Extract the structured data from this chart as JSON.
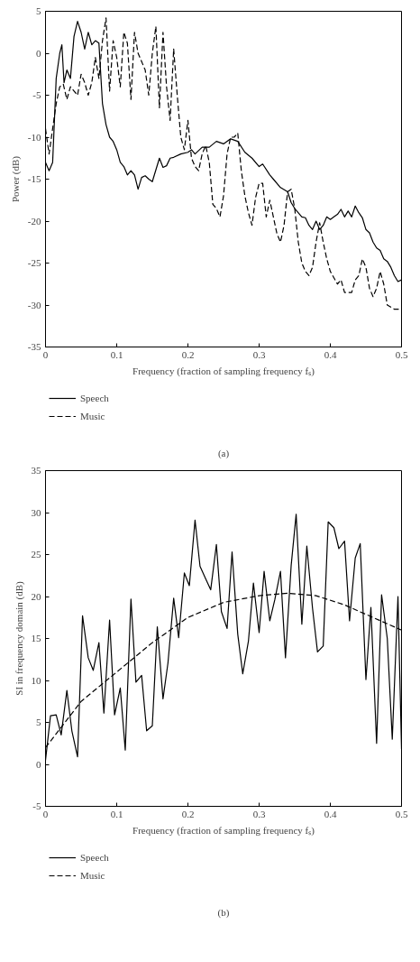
{
  "chart_data": [
    {
      "type": "line",
      "xlabel": "Frequency (fraction of sampling frequency fₛ)",
      "ylabel": "Power (dB)",
      "annotations": [
        "(a)"
      ],
      "xlim": [
        0,
        0.5
      ],
      "ylim": [
        -35,
        5
      ],
      "xticks": [
        0,
        0.1,
        0.2,
        0.3,
        0.4,
        0.5
      ],
      "yticks": [
        -35,
        -30,
        -25,
        -20,
        -15,
        -10,
        -5,
        0,
        5
      ],
      "legend": "bottom",
      "grid": false,
      "series": [
        {
          "name": "Speech",
          "color": "#000000",
          "line_style": "solid",
          "x": [
            0,
            0.005,
            0.01,
            0.015,
            0.02,
            0.023,
            0.026,
            0.03,
            0.035,
            0.04,
            0.045,
            0.05,
            0.055,
            0.06,
            0.065,
            0.07,
            0.075,
            0.08,
            0.085,
            0.09,
            0.095,
            0.1,
            0.105,
            0.11,
            0.115,
            0.12,
            0.125,
            0.13,
            0.135,
            0.14,
            0.145,
            0.15,
            0.16,
            0.165,
            0.17,
            0.175,
            0.18,
            0.19,
            0.2,
            0.205,
            0.21,
            0.22,
            0.23,
            0.24,
            0.25,
            0.26,
            0.27,
            0.28,
            0.29,
            0.3,
            0.305,
            0.315,
            0.32,
            0.33,
            0.34,
            0.345,
            0.35,
            0.36,
            0.365,
            0.37,
            0.375,
            0.38,
            0.385,
            0.39,
            0.395,
            0.4,
            0.405,
            0.41,
            0.415,
            0.42,
            0.425,
            0.43,
            0.435,
            0.44,
            0.445,
            0.45,
            0.455,
            0.46,
            0.465,
            0.47,
            0.475,
            0.48,
            0.485,
            0.49,
            0.495,
            0.5
          ],
          "values": [
            -13,
            -14,
            -13,
            -3,
            0,
            1,
            -3.5,
            -2,
            -3,
            2,
            3.8,
            2.5,
            0.5,
            2.5,
            1,
            1.5,
            1.2,
            -6,
            -8.5,
            -10,
            -10.5,
            -11.5,
            -13,
            -13.5,
            -14.5,
            -14,
            -14.5,
            -16.2,
            -14.8,
            -14.6,
            -15,
            -15.3,
            -12.5,
            -13.6,
            -13.4,
            -12.5,
            -12.4,
            -12,
            -11.8,
            -11.5,
            -12,
            -11.2,
            -11.2,
            -10.5,
            -10.8,
            -10.2,
            -10.5,
            -11.8,
            -12.5,
            -13.5,
            -13.2,
            -14.5,
            -15,
            -16,
            -16.5,
            -17.8,
            -18.5,
            -19.5,
            -19.6,
            -20.5,
            -21,
            -20,
            -21,
            -20.5,
            -19.5,
            -19.8,
            -19.5,
            -19.2,
            -18.6,
            -19.5,
            -18.8,
            -19.5,
            -18.2,
            -19,
            -19.6,
            -21,
            -21.4,
            -22.5,
            -23.2,
            -23.5,
            -24.5,
            -24.8,
            -25.5,
            -26.5,
            -27.2,
            -27
          ]
        },
        {
          "name": "Music",
          "color": "#000000",
          "line_style": "dashed",
          "x": [
            0,
            0.005,
            0.01,
            0.015,
            0.02,
            0.025,
            0.03,
            0.035,
            0.04,
            0.045,
            0.05,
            0.055,
            0.06,
            0.065,
            0.07,
            0.075,
            0.08,
            0.085,
            0.09,
            0.095,
            0.1,
            0.105,
            0.11,
            0.115,
            0.12,
            0.125,
            0.13,
            0.135,
            0.14,
            0.145,
            0.15,
            0.155,
            0.16,
            0.165,
            0.17,
            0.175,
            0.18,
            0.185,
            0.19,
            0.195,
            0.2,
            0.205,
            0.21,
            0.215,
            0.22,
            0.225,
            0.23,
            0.235,
            0.24,
            0.245,
            0.25,
            0.255,
            0.26,
            0.265,
            0.27,
            0.275,
            0.28,
            0.285,
            0.29,
            0.295,
            0.3,
            0.305,
            0.31,
            0.315,
            0.32,
            0.325,
            0.33,
            0.335,
            0.34,
            0.345,
            0.35,
            0.355,
            0.36,
            0.365,
            0.37,
            0.375,
            0.38,
            0.385,
            0.39,
            0.395,
            0.4,
            0.41,
            0.415,
            0.42,
            0.43,
            0.435,
            0.44,
            0.445,
            0.45,
            0.455,
            0.46,
            0.465,
            0.47,
            0.475,
            0.48,
            0.49,
            0.5
          ],
          "values": [
            -9,
            -12,
            -9,
            -6,
            -4,
            -3.7,
            -5.5,
            -4,
            -4.5,
            -5,
            -2.5,
            -3.5,
            -5,
            -3.5,
            -0.5,
            -3,
            1.5,
            4.2,
            -4.5,
            1.5,
            -0.5,
            -4,
            2.5,
            1.2,
            -5.5,
            2.5,
            0,
            -1,
            -2,
            -5,
            0,
            3.2,
            -6.5,
            2.5,
            -4,
            -8,
            0.5,
            -5,
            -10,
            -11.5,
            -8,
            -12.5,
            -13.5,
            -14,
            -12,
            -11,
            -13,
            -18,
            -18.5,
            -19.5,
            -17,
            -12,
            -10,
            -10,
            -9.5,
            -14,
            -17,
            -19,
            -20.5,
            -17.2,
            -15.5,
            -15.5,
            -19.5,
            -17.5,
            -19.5,
            -21.5,
            -22.5,
            -20.5,
            -16.5,
            -16.2,
            -18.5,
            -22.5,
            -25,
            -26,
            -26.5,
            -25.5,
            -22.5,
            -20.2,
            -22.5,
            -24.5,
            -26,
            -27.5,
            -27,
            -28.5,
            -28.5,
            -27,
            -26.5,
            -24.5,
            -25.5,
            -28,
            -29,
            -28,
            -26,
            -27.5,
            -30,
            -30.5,
            -30.5
          ]
        }
      ]
    },
    {
      "type": "line",
      "xlabel": "Frequency (fraction of sampling frequency fₛ)",
      "ylabel": "SI in frequency domain (dB)",
      "annotations": [
        "(b)"
      ],
      "xlim": [
        0,
        0.5
      ],
      "ylim": [
        -5,
        35
      ],
      "xticks": [
        0,
        0.1,
        0.2,
        0.3,
        0.4,
        0.5
      ],
      "yticks": [
        -5,
        0,
        5,
        10,
        15,
        20,
        25,
        30,
        35
      ],
      "legend": "bottom",
      "grid": false,
      "series": [
        {
          "name": "Speech",
          "color": "#000000",
          "line_style": "solid",
          "x": [
            0,
            0.007,
            0.015,
            0.022,
            0.03,
            0.037,
            0.045,
            0.052,
            0.06,
            0.067,
            0.075,
            0.082,
            0.09,
            0.097,
            0.105,
            0.112,
            0.12,
            0.127,
            0.135,
            0.142,
            0.15,
            0.157,
            0.165,
            0.172,
            0.18,
            0.187,
            0.195,
            0.202,
            0.21,
            0.217,
            0.225,
            0.232,
            0.24,
            0.247,
            0.255,
            0.262,
            0.27,
            0.277,
            0.285,
            0.292,
            0.3,
            0.307,
            0.315,
            0.322,
            0.33,
            0.337,
            0.345,
            0.352,
            0.36,
            0.367,
            0.375,
            0.382,
            0.39,
            0.397,
            0.405,
            0.412,
            0.42,
            0.427,
            0.435,
            0.442,
            0.45,
            0.457,
            0.465,
            0.472,
            0.48,
            0.487,
            0.495,
            0.5
          ],
          "values": [
            0.5,
            5.8,
            5.9,
            3.5,
            8.8,
            4,
            0.9,
            17.7,
            12.7,
            11.2,
            14.5,
            6.1,
            17.2,
            5.9,
            9.1,
            1.7,
            19.7,
            9.8,
            10.6,
            4,
            4.6,
            16.4,
            7.8,
            12.1,
            19.8,
            15.1,
            22.8,
            21.3,
            29.1,
            23.6,
            22.1,
            20.8,
            26.2,
            18.2,
            16.2,
            25.3,
            15.5,
            10.8,
            14.7,
            21.6,
            15.7,
            23,
            17.1,
            19.6,
            23,
            12.7,
            23.7,
            29.8,
            16.7,
            26,
            18.6,
            13.4,
            14.1,
            28.9,
            28.2,
            25.7,
            26.6,
            17.1,
            24.6,
            26.3,
            10.1,
            18.7,
            2.5,
            20.2,
            15,
            3,
            20,
            1.8
          ]
        },
        {
          "name": "Music",
          "color": "#000000",
          "line_style": "dashed",
          "x": [
            0,
            0.05,
            0.1,
            0.15,
            0.2,
            0.25,
            0.3,
            0.34,
            0.38,
            0.42,
            0.46,
            0.5
          ],
          "values": [
            2,
            7.5,
            11,
            14.5,
            17.5,
            19.3,
            20.1,
            20.4,
            20.1,
            19,
            17.5,
            16
          ]
        }
      ]
    }
  ]
}
